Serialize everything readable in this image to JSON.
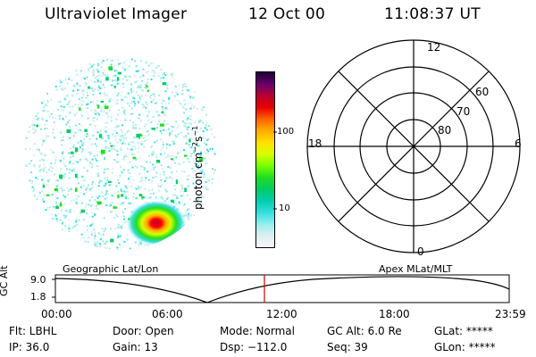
{
  "header": {
    "title": "Ultraviolet Imager",
    "date": "12 Oct 00",
    "time": "11:08:37 UT"
  },
  "colorbar": {
    "label": "photon cm",
    "label_sup1": "−2",
    "label_mid": "s",
    "label_sup2": "−1",
    "ticks": [
      "100",
      "10"
    ],
    "colors": [
      "#1a0033",
      "#6b006b",
      "#b30036",
      "#e60000",
      "#ff6600",
      "#ffaa00",
      "#ffe000",
      "#d6ff00",
      "#7dff00",
      "#22dd22",
      "#00cc66",
      "#00ccaa",
      "#33dddd",
      "#99eeee",
      "#dcefef",
      "#f6f6f6"
    ]
  },
  "polar": {
    "mlt_labels": {
      "top": "12",
      "left": "18",
      "right": "6",
      "bottom": "0"
    },
    "lat_labels": [
      "60",
      "70",
      "80"
    ]
  },
  "timeline": {
    "left_label": "Geographic Lat/Lon",
    "right_label": "Apex MLat/MLT",
    "y_axis_label": "GC Alt",
    "y_ticks": [
      "9.0",
      "1.8"
    ],
    "x_ticks": [
      "00:00",
      "06:00",
      "12:00",
      "18:00",
      "23:59"
    ],
    "marker_color": "#cc0000"
  },
  "info": {
    "flt": "Flt: LBHL",
    "door": "Door: Open",
    "mode": "Mode: Normal",
    "gcalt": "GC Alt: 6.0 Re",
    "glat": "GLat: *****",
    "ip": "IP: 36.0",
    "gain": "Gain: 13",
    "dsp": "Dsp: −112.0",
    "seq": "Seq: 39",
    "glon": "GLon: *****"
  }
}
